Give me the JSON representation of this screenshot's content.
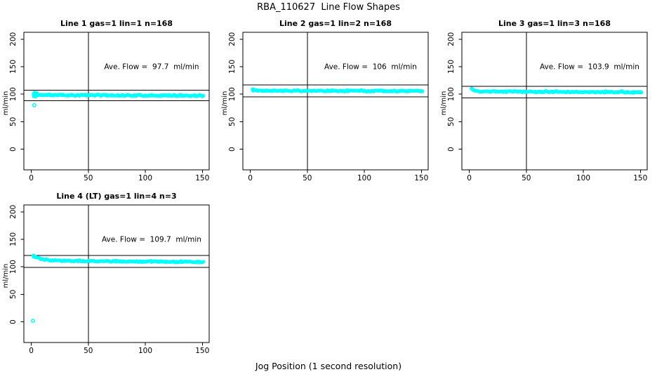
{
  "figure": {
    "main_title": "RBA_110627  Line Flow Shapes",
    "x_axis_label": "Jog Position (1 second resolution)",
    "background_color": "#FFFFFF",
    "point_color": "#00FFFF",
    "axis_color": "#000000"
  },
  "chart_data": [
    {
      "type": "scatter",
      "title": "Line 1 gas=1 lin=1 n=168",
      "line": 1,
      "gas": 1,
      "lin": 1,
      "n": 168,
      "ave_flow": 97.7,
      "annotation": "Ave. Flow =  97.7  ml/min",
      "annotation_pos": {
        "x": 105.5,
        "y": 150
      },
      "ylabel": "ml/min",
      "xlim": [
        -6.5,
        156
      ],
      "ylim": [
        -37.5,
        212.5
      ],
      "xticks": [
        0,
        50,
        100,
        150
      ],
      "yticks": [
        0,
        50,
        100,
        150,
        200
      ],
      "vline_x": 50,
      "hlines": [
        107.5,
        87.9
      ],
      "grid_position": {
        "row": 0,
        "col": 0
      },
      "band": {
        "x_start": 2,
        "x_end": 151,
        "n_points": 168,
        "y_start": 100.2,
        "settle_start": 98.5,
        "settle_end": 97.3,
        "tau": 2.2,
        "jitter": 1.2,
        "spike": 2.0,
        "spike_prob": 0.08,
        "seed": 11
      },
      "extra_points": [
        [
          2.2,
          96.2
        ],
        [
          2.8,
          103.2
        ],
        [
          3.4,
          101.8
        ],
        [
          2.5,
          99.0
        ],
        [
          4.2,
          102.6
        ],
        [
          3.0,
          97.0
        ],
        [
          5.0,
          102.2
        ],
        [
          4.0,
          95.8
        ]
      ],
      "outliers": [
        [
          2.6,
          80
        ]
      ]
    },
    {
      "type": "scatter",
      "title": "Line 2 gas=1 lin=2 n=168",
      "line": 2,
      "gas": 1,
      "lin": 2,
      "n": 168,
      "ave_flow": 106,
      "annotation": "Ave. Flow =  106  ml/min",
      "annotation_pos": {
        "x": 105.5,
        "y": 150
      },
      "ylabel": "ml/min",
      "xlim": [
        -6.5,
        156
      ],
      "ylim": [
        -37.5,
        212.5
      ],
      "xticks": [
        0,
        50,
        100,
        150
      ],
      "yticks": [
        0,
        50,
        100,
        150,
        200
      ],
      "vline_x": 50,
      "hlines": [
        116.6,
        95.4
      ],
      "grid_position": {
        "row": 0,
        "col": 1
      },
      "band": {
        "x_start": 2,
        "x_end": 151,
        "n_points": 168,
        "y_start": 108.8,
        "settle_start": 106.4,
        "settle_end": 105.6,
        "tau": 2.5,
        "jitter": 1.1,
        "spike": 1.6,
        "spike_prob": 0.1,
        "seed": 22
      },
      "extra_points": [
        [
          2.2,
          108.3
        ],
        [
          2.8,
          109.0
        ],
        [
          3.5,
          107.6
        ],
        [
          2.4,
          106.4
        ]
      ],
      "outliers": []
    },
    {
      "type": "scatter",
      "title": "Line 3 gas=1 lin=3 n=168",
      "line": 3,
      "gas": 1,
      "lin": 3,
      "n": 168,
      "ave_flow": 103.9,
      "annotation": "Ave. Flow =  103.9  ml/min",
      "annotation_pos": {
        "x": 105.5,
        "y": 150
      },
      "ylabel": "ml/min",
      "xlim": [
        -6.5,
        156
      ],
      "ylim": [
        -37.5,
        212.5
      ],
      "xticks": [
        0,
        50,
        100,
        150
      ],
      "yticks": [
        0,
        50,
        100,
        150,
        200
      ],
      "vline_x": 50,
      "hlines": [
        114.3,
        93.5
      ],
      "grid_position": {
        "row": 0,
        "col": 2
      },
      "band": {
        "x_start": 2,
        "x_end": 151,
        "n_points": 168,
        "y_start": 110.0,
        "settle_start": 104.9,
        "settle_end": 103.4,
        "tau": 1.8,
        "jitter": 1.0,
        "spike": 1.5,
        "spike_prob": 0.08,
        "seed": 33
      },
      "extra_points": [
        [
          2.2,
          110.2
        ],
        [
          2.7,
          109.2
        ]
      ],
      "outliers": []
    },
    {
      "type": "scatter",
      "title": "Line 4 (LT) gas=1 lin=4 n=3",
      "line": 4,
      "gas": 1,
      "lin": 4,
      "n": 3,
      "ave_flow": 109.7,
      "annotation": "Ave. Flow =  109.7  ml/min",
      "annotation_pos": {
        "x": 105.5,
        "y": 150
      },
      "ylabel": "ml/min",
      "xlim": [
        -6.5,
        156
      ],
      "ylim": [
        -37.5,
        212.5
      ],
      "xticks": [
        0,
        50,
        100,
        150
      ],
      "yticks": [
        0,
        50,
        100,
        150,
        200
      ],
      "vline_x": 50,
      "hlines": [
        120.7,
        98.7
      ],
      "grid_position": {
        "row": 1,
        "col": 0
      },
      "band": {
        "x_start": 2,
        "x_end": 151,
        "n_points": 168,
        "y_start": 120.0,
        "settle_start": 111.3,
        "settle_end": 108.6,
        "tau": 7.0,
        "jitter": 1.0,
        "spike": 1.2,
        "spike_prob": 0.06,
        "seed": 44
      },
      "extra_points": [
        [
          2.0,
          119.5
        ],
        [
          2.4,
          120.3
        ],
        [
          2.9,
          118.8
        ],
        [
          3.4,
          117.6
        ],
        [
          2.2,
          118.0
        ]
      ],
      "outliers": [
        [
          1.5,
          2
        ]
      ]
    }
  ]
}
